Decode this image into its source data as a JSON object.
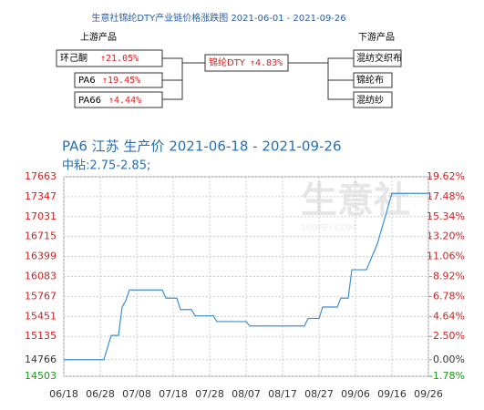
{
  "header": {
    "title": "生意社锦纶DTY产业链价格涨跌图  2021-06-01 - 2021-09-26",
    "upstream_label": "上游产品",
    "downstream_label": "下游产品"
  },
  "nodes": {
    "upstream": [
      {
        "name": "环己酮",
        "change": "↑21.05%"
      },
      {
        "name": "PA6",
        "change": "↑19.45%"
      },
      {
        "name": "PA66",
        "change": "↑4.44%"
      }
    ],
    "center": {
      "name": "锦纶DTY",
      "change": "↑4.83%"
    },
    "downstream": [
      {
        "name": "混纺交织布"
      },
      {
        "name": "锦纶布"
      },
      {
        "name": "混纺纱"
      }
    ]
  },
  "chart_data": {
    "type": "line",
    "title": "PA6 江苏 生产价 2021-06-18 - 2021-09-26",
    "subtitle": "中粘:2.75-2.85;",
    "watermark": "生意社",
    "watermark_sub": "100PPI.COM",
    "x": [
      "06/18",
      "06/29",
      "07/01",
      "07/03",
      "07/04",
      "07/05",
      "07/06",
      "07/15",
      "07/16",
      "07/19",
      "07/20",
      "07/23",
      "07/24",
      "07/29",
      "07/30",
      "08/07",
      "08/08",
      "08/23",
      "08/24",
      "08/27",
      "08/28",
      "09/01",
      "09/02",
      "09/04",
      "09/05",
      "09/09",
      "09/12",
      "09/14",
      "09/16",
      "09/26"
    ],
    "series": [
      {
        "name": "PA6",
        "color": "#3b8fd6",
        "values": [
          14766,
          14766,
          15150,
          15150,
          15600,
          15700,
          15870,
          15870,
          15740,
          15740,
          15560,
          15560,
          15460,
          15460,
          15370,
          15370,
          15300,
          15300,
          15420,
          15420,
          15600,
          15600,
          15740,
          15740,
          16190,
          16190,
          16600,
          17000,
          17400,
          17400
        ]
      }
    ],
    "xticks": [
      "06/18",
      "06/28",
      "07/08",
      "07/18",
      "07/28",
      "08/07",
      "08/17",
      "08/27",
      "09/06",
      "09/16",
      "09/26"
    ],
    "ylim": [
      14503,
      17663
    ],
    "yticks": [
      17663,
      17347,
      17031,
      16715,
      16399,
      16083,
      15767,
      15451,
      15135,
      14766,
      14503
    ],
    "y2lim": [
      -1.78,
      19.62
    ],
    "y2ticks": [
      {
        "value": 19.62,
        "label": "19.62%"
      },
      {
        "value": 17.48,
        "label": "17.48%"
      },
      {
        "value": 15.34,
        "label": "15.34%"
      },
      {
        "value": 13.2,
        "label": "13.20%"
      },
      {
        "value": 11.06,
        "label": "11.06%"
      },
      {
        "value": 8.92,
        "label": "8.92%"
      },
      {
        "value": 6.78,
        "label": "6.78%"
      },
      {
        "value": 4.64,
        "label": "4.64%"
      },
      {
        "value": 2.5,
        "label": "2.50%"
      },
      {
        "value": 0,
        "label": "0.00%"
      },
      {
        "value": -1.78,
        "label": "-1.78%"
      }
    ],
    "grid": true
  }
}
